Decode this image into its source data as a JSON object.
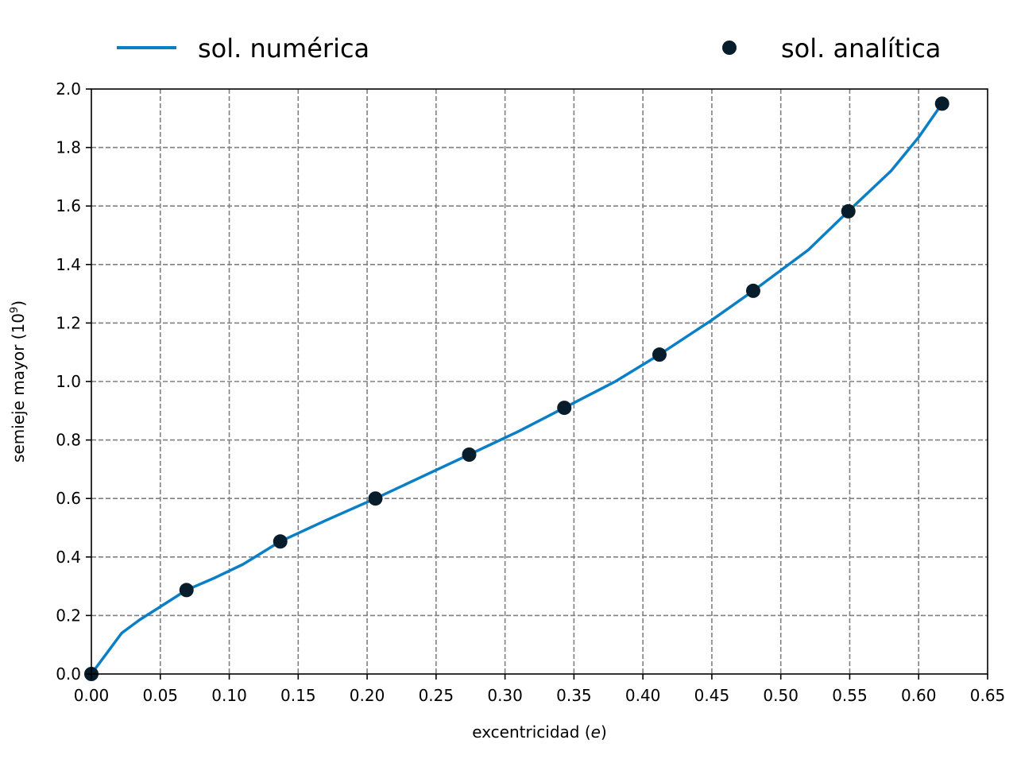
{
  "chart_data": {
    "type": "line",
    "title": "",
    "xlabel_prefix": "excentricidad (",
    "xlabel_var": "e",
    "xlabel_suffix": ")",
    "ylabel_base": "semieje mayor (10",
    "ylabel_exp": "9",
    "ylabel_suffix": ")",
    "xlim": [
      0.0,
      0.65
    ],
    "ylim": [
      0.0,
      2.0
    ],
    "xticks": [
      0.0,
      0.05,
      0.1,
      0.15,
      0.2,
      0.25,
      0.3,
      0.35,
      0.4,
      0.45,
      0.5,
      0.55,
      0.6,
      0.65
    ],
    "xtick_labels": [
      "0.00",
      "0.05",
      "0.10",
      "0.15",
      "0.20",
      "0.25",
      "0.30",
      "0.35",
      "0.40",
      "0.45",
      "0.50",
      "0.55",
      "0.60",
      "0.65"
    ],
    "yticks": [
      0.0,
      0.2,
      0.4,
      0.6,
      0.8,
      1.0,
      1.2,
      1.4,
      1.6,
      1.8,
      2.0
    ],
    "ytick_labels": [
      "0.0",
      "0.2",
      "0.4",
      "0.6",
      "0.8",
      "1.0",
      "1.2",
      "1.4",
      "1.6",
      "1.8",
      "2.0"
    ],
    "grid": true,
    "legend_placement": "top",
    "series": [
      {
        "name": "sol. numérica",
        "kind": "line",
        "color": "#0b7fc6",
        "x": [
          0.0,
          0.022,
          0.035,
          0.05,
          0.069,
          0.09,
          0.11,
          0.137,
          0.17,
          0.206,
          0.24,
          0.274,
          0.31,
          0.343,
          0.38,
          0.412,
          0.45,
          0.48,
          0.52,
          0.549,
          0.58,
          0.6,
          0.617
        ],
        "y": [
          0.0,
          0.14,
          0.185,
          0.23,
          0.287,
          0.33,
          0.375,
          0.453,
          0.525,
          0.6,
          0.675,
          0.75,
          0.83,
          0.91,
          1.0,
          1.092,
          1.21,
          1.31,
          1.45,
          1.582,
          1.72,
          1.835,
          1.95
        ]
      },
      {
        "name": "sol. analítica",
        "kind": "scatter",
        "color": "#071d2b",
        "x": [
          0.0,
          0.069,
          0.137,
          0.206,
          0.274,
          0.343,
          0.412,
          0.48,
          0.549,
          0.617
        ],
        "y": [
          0.0,
          0.287,
          0.453,
          0.6,
          0.75,
          0.91,
          1.092,
          1.31,
          1.582,
          1.95
        ]
      }
    ]
  }
}
